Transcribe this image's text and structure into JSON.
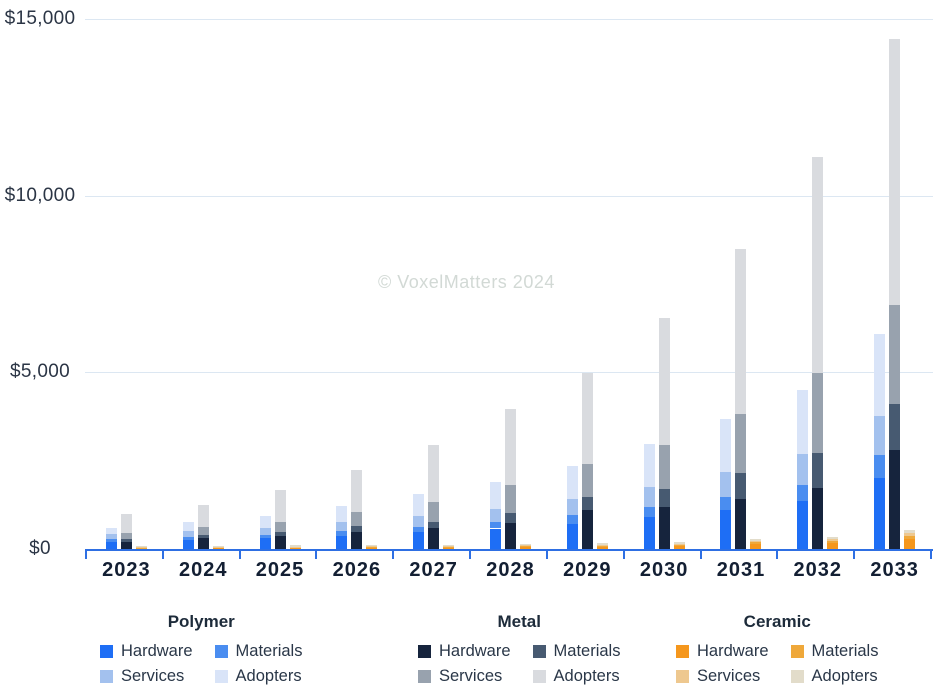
{
  "watermark": "© VoxelMatters 2024",
  "y_axis": {
    "tick_values": [
      0,
      5000,
      10000,
      15000
    ],
    "tick_labels": [
      "$0",
      "$5,000",
      "$10,000",
      "$15,000"
    ],
    "max": 15000
  },
  "x_axis": {
    "years": [
      "2023",
      "2024",
      "2025",
      "2026",
      "2027",
      "2028",
      "2029",
      "2030",
      "2031",
      "2032",
      "2033"
    ]
  },
  "legend": {
    "groups": [
      {
        "name": "Polymer",
        "items": [
          "Hardware",
          "Materials",
          "Services",
          "Adopters"
        ]
      },
      {
        "name": "Metal",
        "items": [
          "Hardware",
          "Materials",
          "Services",
          "Adopters"
        ]
      },
      {
        "name": "Ceramic",
        "items": [
          "Hardware",
          "Materials",
          "Services",
          "Adopters"
        ]
      }
    ]
  },
  "colors": {
    "axis_line": "#2e6fe3",
    "grid_line": "#dce7f2",
    "year_label": "#131f33",
    "y_label": "#2b3545",
    "watermark": "#d2d9d5",
    "series": {
      "Polymer": {
        "Hardware": "#1e6ef5",
        "Materials": "#4a8df0",
        "Services": "#a3c1ee",
        "Adopters": "#d9e4f8"
      },
      "Metal": {
        "Hardware": "#16243d",
        "Materials": "#475a71",
        "Services": "#98a2ae",
        "Adopters": "#d9dbdf"
      },
      "Ceramic": {
        "Hardware": "#f5971d",
        "Materials": "#efa83a",
        "Services": "#eec88f",
        "Adopters": "#e2dcca"
      }
    }
  },
  "chart_data": {
    "type": "bar",
    "stacked": true,
    "grouped": true,
    "unit": "USD millions",
    "grid": "on",
    "legend_position": "bottom",
    "ylim": [
      0,
      15000
    ],
    "categories": [
      "2023",
      "2024",
      "2025",
      "2026",
      "2027",
      "2028",
      "2029",
      "2030",
      "2031",
      "2032",
      "2033"
    ],
    "segment_order_bottom_to_top": [
      "Hardware",
      "Materials",
      "Services",
      "Adopters"
    ],
    "groups": [
      {
        "name": "Polymer",
        "series": [
          {
            "name": "Hardware",
            "values": [
              200,
              250,
              300,
              380,
              475,
              580,
              720,
              900,
              1100,
              1350,
              2000
            ]
          },
          {
            "name": "Materials",
            "values": [
              85,
              95,
              105,
              130,
              155,
              190,
              240,
              300,
              370,
              460,
              650
            ]
          },
          {
            "name": "Services",
            "values": [
              130,
              160,
              195,
              240,
              300,
              360,
              450,
              560,
              700,
              870,
              1100
            ]
          },
          {
            "name": "Adopters",
            "values": [
              185,
              250,
              340,
              470,
              620,
              760,
              950,
              1220,
              1500,
              1820,
              2340
            ]
          }
        ],
        "totals": [
          600,
          755,
          940,
          1220,
          1550,
          1890,
          2360,
          2980,
          3670,
          4500,
          6090
        ]
      },
      {
        "name": "Metal",
        "series": [
          {
            "name": "Hardware",
            "values": [
              205,
              310,
              375,
              470,
              585,
              725,
              1100,
              1175,
              1410,
              1720,
              2810
            ]
          },
          {
            "name": "Materials",
            "values": [
              85,
              95,
              120,
              170,
              190,
              290,
              360,
              515,
              730,
              990,
              1300
            ]
          },
          {
            "name": "Services",
            "values": [
              160,
              205,
              280,
              395,
              565,
              810,
              940,
              1250,
              1690,
              2260,
              2790
            ]
          },
          {
            "name": "Adopters",
            "values": [
              535,
              640,
              900,
              1205,
              1600,
              2125,
              2580,
              3610,
              4650,
              6130,
              7540
            ]
          }
        ],
        "totals": [
          985,
          1250,
          1675,
          2240,
          2940,
          3950,
          4980,
          6550,
          8480,
          11100,
          14440
        ]
      },
      {
        "name": "Ceramic",
        "series": [
          {
            "name": "Hardware",
            "values": [
              25,
              35,
              36,
              42,
              48,
              55,
              65,
              85,
              140,
              170,
              290
            ]
          },
          {
            "name": "Materials",
            "values": [
              10,
              12,
              12,
              14,
              16,
              18,
              22,
              28,
              45,
              60,
              90
            ]
          },
          {
            "name": "Services",
            "values": [
              15,
              18,
              20,
              22,
              24,
              28,
              32,
              38,
              50,
              60,
              85
            ]
          },
          {
            "name": "Adopters",
            "values": [
              25,
              30,
              32,
              34,
              36,
              40,
              44,
              48,
              50,
              55,
              80
            ]
          }
        ],
        "totals": [
          75,
          95,
          100,
          112,
          124,
          141,
          163,
          199,
          285,
          345,
          545
        ]
      }
    ]
  }
}
